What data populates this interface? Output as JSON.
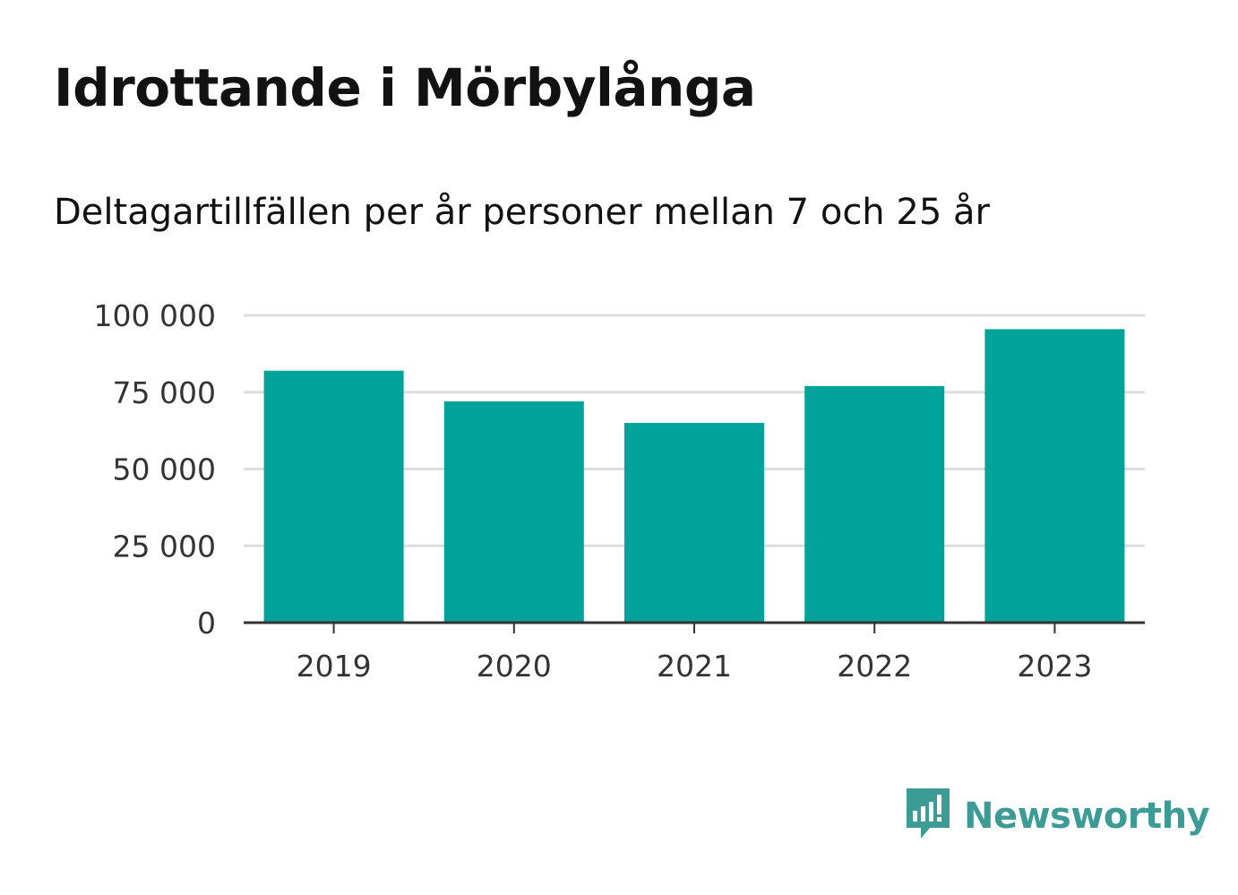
{
  "header": {
    "title": "Idrottande i Mörbylånga",
    "subtitle": "Deltagartillfällen per år personer mellan 7 och 25 år"
  },
  "brand": {
    "name": "Newsworthy",
    "icon": "newsworthy-logo-icon",
    "color": "#3d9b96"
  },
  "chart_data": {
    "type": "bar",
    "categories": [
      "2019",
      "2020",
      "2021",
      "2022",
      "2023"
    ],
    "values": [
      82000,
      72000,
      65000,
      77000,
      95500
    ],
    "ylim": [
      0,
      100000
    ],
    "yticks": [
      0,
      25000,
      50000,
      75000,
      100000
    ],
    "ytick_labels": [
      "0",
      "25 000",
      "50 000",
      "75 000",
      "100 000"
    ],
    "xlabel": "",
    "ylabel": "",
    "grid": true,
    "bar_color": "#00a39a",
    "grid_color": "#dddddd",
    "axis_color": "#333333"
  }
}
